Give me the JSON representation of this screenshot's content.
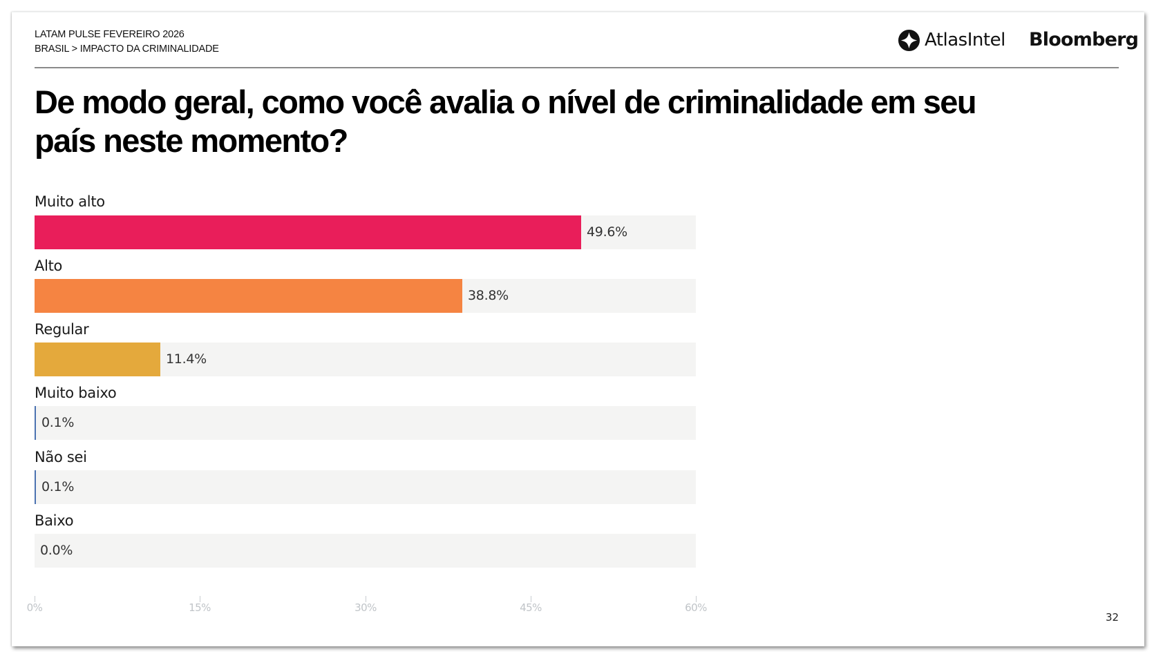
{
  "header": {
    "line1": "LATAM PULSE FEVEREIRO 2026",
    "line2": "BRASIL > IMPACTO DA CRIMINALIDADE",
    "logos": {
      "atlas": "AtlasIntel",
      "bloomberg": "Bloomberg"
    }
  },
  "title": "De modo geral, como você avalia o nível de criminalidade em seu país neste momento?",
  "page_number": "32",
  "colors": {
    "muito_alto": "#E91E5A",
    "alto": "#F58442",
    "regular": "#E4A93C",
    "small": "#4A72B0",
    "track": "#F4F4F3"
  },
  "chart_data": {
    "type": "bar",
    "orientation": "horizontal",
    "title": "De modo geral, como você avalia o nível de criminalidade em seu país neste momento?",
    "categories": [
      "Muito alto",
      "Alto",
      "Regular",
      "Muito baixo",
      "Não sei",
      "Baixo"
    ],
    "values": [
      49.6,
      38.8,
      11.4,
      0.1,
      0.1,
      0.0
    ],
    "value_labels": [
      "49.6%",
      "38.8%",
      "11.4%",
      "0.1%",
      "0.1%",
      "0.0%"
    ],
    "bar_colors": [
      "#E91E5A",
      "#F58442",
      "#E4A93C",
      "#4A72B0",
      "#4A72B0",
      "#4A72B0"
    ],
    "xlabel": "",
    "ylabel": "",
    "xlim": [
      0,
      60
    ],
    "x_ticks": [
      "0%",
      "15%",
      "30%",
      "45%",
      "60%"
    ],
    "grid": false,
    "legend": "none"
  }
}
